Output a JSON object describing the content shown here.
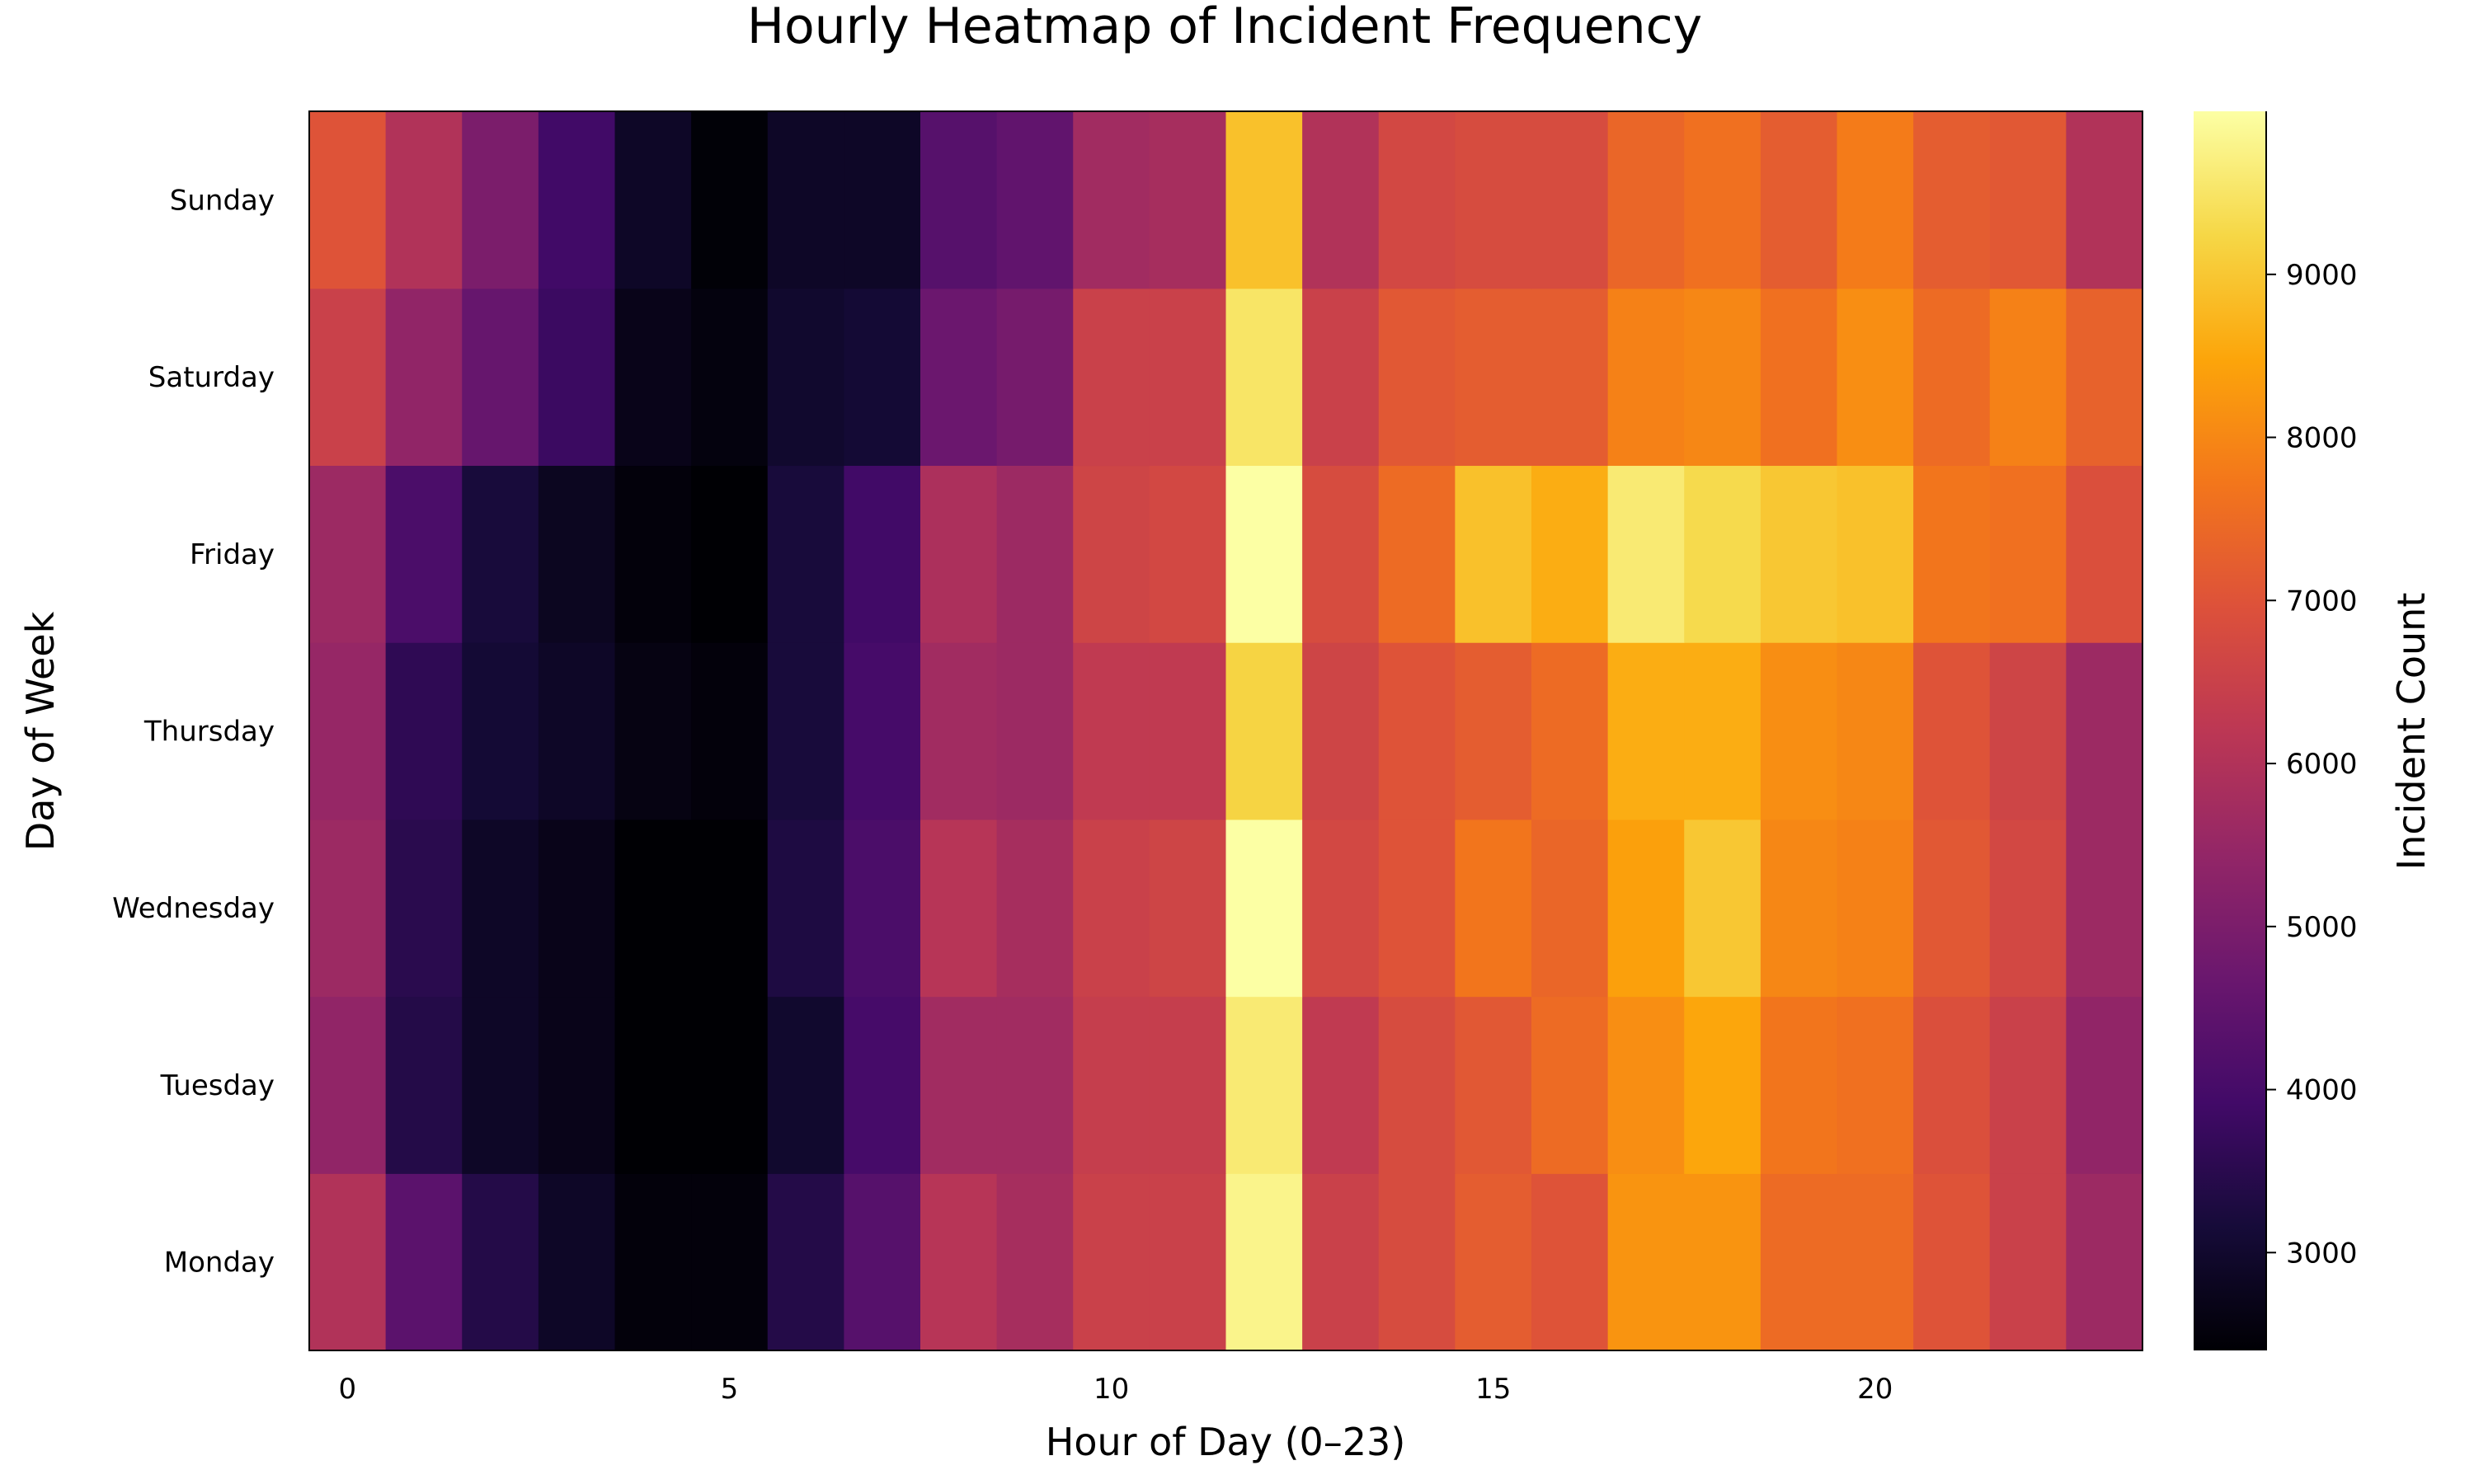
{
  "chart_data": {
    "type": "heatmap",
    "title": "Hourly Heatmap of Incident Frequency",
    "xlabel": "Hour of Day (0–23)",
    "ylabel": "Day of Week",
    "colorbar_label": "Incident Count",
    "colormap": "inferno",
    "vmin": 2400,
    "vmax": 10000,
    "x": [
      0,
      1,
      2,
      3,
      4,
      5,
      6,
      7,
      8,
      9,
      10,
      11,
      12,
      13,
      14,
      15,
      16,
      17,
      18,
      19,
      20,
      21,
      22,
      23
    ],
    "x_ticks": [
      0,
      5,
      10,
      15,
      20
    ],
    "y_ticks": [
      3000,
      4000,
      5000,
      6000,
      7000,
      8000,
      9000
    ],
    "y_bottom_to_top": [
      "Monday",
      "Tuesday",
      "Wednesday",
      "Thursday",
      "Friday",
      "Saturday",
      "Sunday"
    ],
    "values": {
      "Sunday": [
        7000,
        6000,
        5000,
        3900,
        2900,
        2450,
        2900,
        2900,
        4300,
        4500,
        5700,
        5800,
        8900,
        6000,
        6700,
        6800,
        6800,
        7400,
        7600,
        7200,
        7800,
        7200,
        7100,
        6000
      ],
      "Saturday": [
        6500,
        5400,
        4600,
        3800,
        2700,
        2550,
        3000,
        3100,
        4700,
        4900,
        6500,
        6500,
        9500,
        6500,
        7100,
        7200,
        7200,
        7900,
        8000,
        7600,
        8100,
        7500,
        7900,
        7300
      ],
      "Friday": [
        5600,
        4100,
        3200,
        2800,
        2500,
        2400,
        3200,
        3900,
        5900,
        5600,
        6600,
        6700,
        10000,
        6800,
        7500,
        8900,
        8600,
        9600,
        9300,
        9000,
        8900,
        7700,
        7600,
        6900
      ],
      "Thursday": [
        5500,
        3600,
        3100,
        2900,
        2600,
        2500,
        3200,
        4000,
        5700,
        5600,
        6300,
        6300,
        9200,
        6600,
        7000,
        7200,
        7500,
        8600,
        8600,
        8100,
        8000,
        7000,
        6600,
        5600
      ],
      "Wednesday": [
        5600,
        3500,
        2900,
        2700,
        2400,
        2400,
        3300,
        4100,
        6100,
        5800,
        6500,
        6600,
        10000,
        6700,
        7000,
        7700,
        7400,
        8400,
        9000,
        8000,
        7900,
        7100,
        6700,
        5600
      ],
      "Tuesday": [
        5400,
        3400,
        2900,
        2700,
        2400,
        2400,
        3000,
        4000,
        5700,
        5700,
        6400,
        6400,
        9600,
        6300,
        6800,
        7100,
        7500,
        8100,
        8500,
        7700,
        7600,
        6900,
        6500,
        5400
      ],
      "Monday": [
        6000,
        4400,
        3400,
        2900,
        2500,
        2500,
        3400,
        4300,
        6100,
        5800,
        6500,
        6500,
        9800,
        6500,
        6800,
        7200,
        7000,
        8200,
        8200,
        7500,
        7500,
        7000,
        6500,
        5600
      ]
    }
  }
}
